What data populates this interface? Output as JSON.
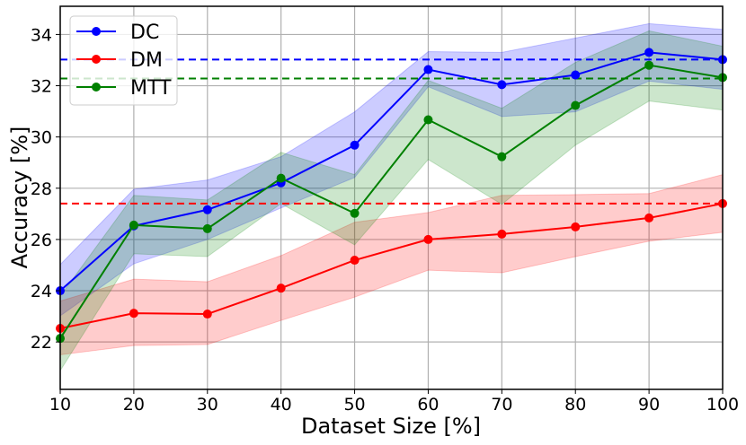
{
  "chart_data": {
    "type": "line",
    "title": "",
    "xlabel": "Dataset Size [%]",
    "ylabel": "Accuracy [%]",
    "xlim": [
      10,
      100
    ],
    "ylim": [
      20.15,
      35.1
    ],
    "grid": true,
    "legend_position": "top-left",
    "x": [
      10,
      20,
      30,
      40,
      50,
      60,
      70,
      80,
      90,
      100
    ],
    "x_ticks": [
      10,
      20,
      30,
      40,
      50,
      60,
      70,
      80,
      90,
      100
    ],
    "x_tick_labels": [
      "10",
      "20",
      "30",
      "40",
      "50",
      "60",
      "70",
      "80",
      "90",
      "100"
    ],
    "y_ticks": [
      22,
      24,
      26,
      28,
      30,
      32,
      34
    ],
    "y_tick_labels": [
      "22",
      "24",
      "26",
      "28",
      "30",
      "32",
      "34"
    ],
    "series": [
      {
        "name": "DC",
        "color": "#0000ff",
        "values": [
          24.0,
          26.53,
          27.16,
          28.21,
          29.68,
          32.63,
          32.04,
          32.42,
          33.3,
          33.02
        ],
        "upper": [
          25.02,
          27.96,
          28.32,
          29.23,
          30.98,
          33.33,
          33.3,
          33.86,
          34.42,
          34.2
        ],
        "lower": [
          23.02,
          25.05,
          26.0,
          27.23,
          28.42,
          31.96,
          30.8,
          30.98,
          32.18,
          31.86
        ],
        "reference": 33.02
      },
      {
        "name": "DM",
        "color": "#ff0000",
        "values": [
          22.53,
          23.12,
          23.09,
          24.1,
          25.19,
          26.0,
          26.21,
          26.49,
          26.84,
          27.4
        ],
        "upper": [
          23.6,
          24.45,
          24.35,
          25.37,
          26.67,
          27.05,
          27.72,
          27.75,
          27.79,
          28.53
        ],
        "lower": [
          21.5,
          21.86,
          21.9,
          22.84,
          23.75,
          24.8,
          24.7,
          25.33,
          25.93,
          26.28
        ],
        "reference": 27.4
      },
      {
        "name": "MTT",
        "color": "#008000",
        "values": [
          22.14,
          26.56,
          26.42,
          28.39,
          27.02,
          30.67,
          29.23,
          31.23,
          32.8,
          32.32
        ],
        "upper": [
          23.79,
          27.72,
          27.54,
          29.4,
          28.53,
          32.21,
          31.12,
          32.91,
          34.14,
          33.54
        ],
        "lower": [
          20.88,
          25.44,
          25.33,
          27.4,
          25.79,
          29.12,
          27.37,
          29.68,
          31.4,
          31.05
        ],
        "reference": 32.28
      }
    ]
  }
}
